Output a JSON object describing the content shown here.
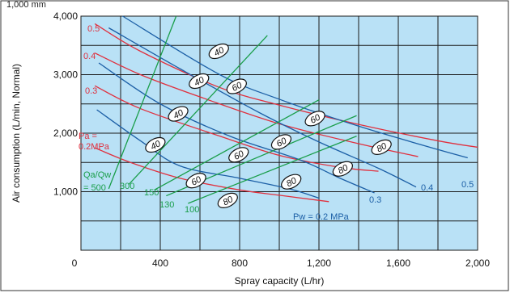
{
  "chart_data": {
    "type": "line",
    "xlabel": "Spray capacity (L/hr)",
    "ylabel": "Air consumption (L/min, Normal)",
    "xlim": [
      0,
      2000
    ],
    "ylim": [
      0,
      4000
    ],
    "grid": true,
    "x_ticks": [
      "0",
      "400",
      "800",
      "1,200",
      "1,600",
      "2,000"
    ],
    "y_ticks": [
      "1,000",
      "2,000",
      "3,000",
      "4,000"
    ],
    "top_left_label": "1,000 mm",
    "background_color": "#b9e1f6",
    "colors": {
      "pa": "#e0303e",
      "pw": "#1c5fa6",
      "qa": "#1a9e4a",
      "grid": "#1a1a1a",
      "bubble": "#ffffff"
    },
    "pa_series": [
      {
        "label": "0.5",
        "points": [
          [
            70,
            3870
          ],
          [
            300,
            3400
          ],
          [
            700,
            2780
          ],
          [
            1000,
            2480
          ],
          [
            1400,
            2150
          ],
          [
            1800,
            1870
          ],
          [
            2000,
            1760
          ]
        ]
      },
      {
        "label": "0.4",
        "points": [
          [
            70,
            3370
          ],
          [
            300,
            3000
          ],
          [
            600,
            2620
          ],
          [
            1000,
            2160
          ],
          [
            1400,
            1820
          ],
          [
            1700,
            1600
          ]
        ]
      },
      {
        "label": "0.3",
        "points": [
          [
            70,
            2810
          ],
          [
            300,
            2420
          ],
          [
            700,
            1950
          ],
          [
            1000,
            1620
          ],
          [
            1300,
            1420
          ],
          [
            1500,
            1350
          ]
        ]
      },
      {
        "label_lines": [
          "Pa =",
          "0.2MPa"
        ],
        "points": [
          [
            70,
            1750
          ],
          [
            250,
            1500
          ],
          [
            500,
            1230
          ],
          [
            800,
            1030
          ],
          [
            1000,
            940
          ],
          [
            1250,
            830
          ]
        ]
      }
    ],
    "pw_series": [
      {
        "label": "0.5",
        "points": [
          [
            210,
            4000
          ],
          [
            700,
            3000
          ],
          [
            1000,
            2580
          ],
          [
            1400,
            2120
          ],
          [
            1800,
            1720
          ],
          [
            1950,
            1580
          ]
        ]
      },
      {
        "label": "0.4",
        "points": [
          [
            140,
            3800
          ],
          [
            500,
            3100
          ],
          [
            900,
            2350
          ],
          [
            1200,
            1850
          ],
          [
            1500,
            1400
          ],
          [
            1690,
            1080
          ]
        ]
      },
      {
        "label": "0.3",
        "points": [
          [
            90,
            3200
          ],
          [
            400,
            2500
          ],
          [
            750,
            1950
          ],
          [
            1100,
            1550
          ],
          [
            1300,
            1240
          ],
          [
            1480,
            980
          ]
        ]
      },
      {
        "label": "Pw = 0.2 MPa",
        "points": [
          [
            80,
            2400
          ],
          [
            300,
            1870
          ],
          [
            500,
            1440
          ],
          [
            800,
            1230
          ],
          [
            1050,
            1050
          ],
          [
            1200,
            890
          ]
        ]
      }
    ],
    "qa_series": [
      {
        "label_lines": [
          "Qa/Qw",
          "= 500"
        ],
        "points": [
          [
            140,
            1050
          ],
          [
            480,
            4000
          ]
        ]
      },
      {
        "label": "300",
        "points": [
          [
            240,
            1120
          ],
          [
            940,
            3670
          ]
        ]
      },
      {
        "label": "150",
        "points": [
          [
            370,
            1030
          ],
          [
            1200,
            2570
          ]
        ]
      },
      {
        "label": "130",
        "points": [
          [
            430,
            930
          ],
          [
            1390,
            2300
          ]
        ]
      },
      {
        "label": "100",
        "points": [
          [
            540,
            800
          ],
          [
            1390,
            1950
          ]
        ]
      }
    ],
    "bubbles": [
      {
        "text": "40",
        "x": 695,
        "y": 3400
      },
      {
        "text": "40",
        "x": 595,
        "y": 2890
      },
      {
        "text": "40",
        "x": 490,
        "y": 2330
      },
      {
        "text": "40",
        "x": 375,
        "y": 1800
      },
      {
        "text": "60",
        "x": 785,
        "y": 2800
      },
      {
        "text": "60",
        "x": 1180,
        "y": 2250
      },
      {
        "text": "60",
        "x": 1010,
        "y": 1850
      },
      {
        "text": "60",
        "x": 795,
        "y": 1630
      },
      {
        "text": "60",
        "x": 580,
        "y": 1190
      },
      {
        "text": "80",
        "x": 1515,
        "y": 1760
      },
      {
        "text": "80",
        "x": 1320,
        "y": 1390
      },
      {
        "text": "80",
        "x": 1060,
        "y": 1170
      },
      {
        "text": "80",
        "x": 740,
        "y": 850
      }
    ]
  }
}
